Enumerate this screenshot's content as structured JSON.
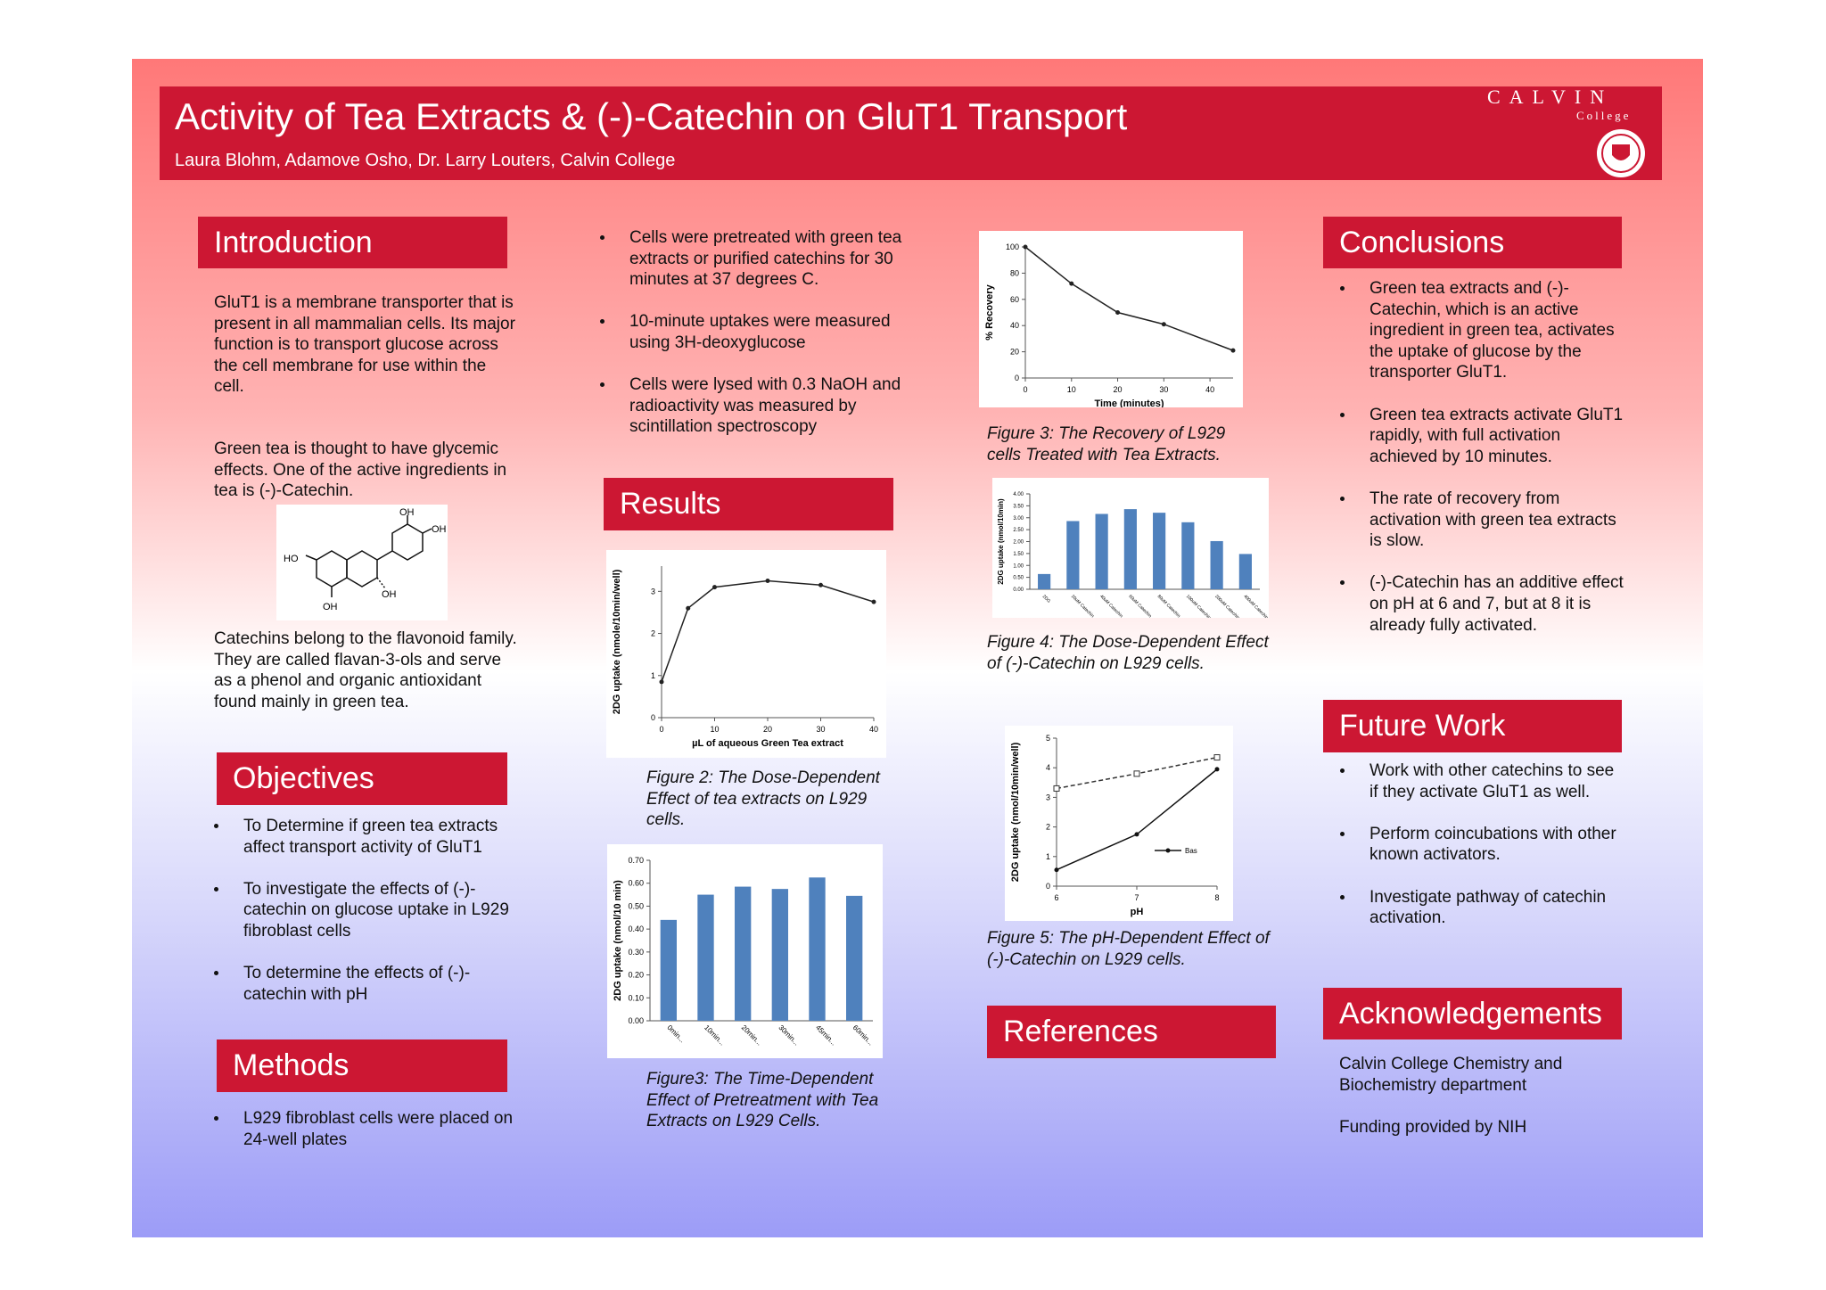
{
  "header": {
    "title": "Activity of Tea Extracts & (-)-Catechin on GluT1 Transport",
    "authors": "Laura Blohm, Adamove Osho, Dr. Larry Louters, Calvin College",
    "logo": {
      "name": "CALVIN",
      "subtitle": "College"
    }
  },
  "introduction": {
    "heading": "Introduction",
    "paragraphs": [
      "GluT1 is a membrane transporter that is present in all mammalian cells. Its major function is to transport glucose across the cell membrane for use within  the cell.",
      "Green tea is thought to have glycemic effects. One of the active ingredients in tea is  (-)-Catechin.",
      "Catechins belong to the flavonoid family. They are called flavan-3-ols and  serve as a phenol and organic antioxidant found mainly in green tea."
    ],
    "structure_labels": [
      "OH",
      "OH",
      "HO",
      "OH",
      "OH"
    ]
  },
  "objectives": {
    "heading": "Objectives",
    "items": [
      "To Determine if green tea extracts affect transport activity of GluT1",
      "To investigate the effects of (-)-catechin on glucose uptake in L929 fibroblast cells",
      "To determine the effects of (-)-catechin with pH"
    ]
  },
  "methods": {
    "heading": "Methods",
    "items": [
      "L929 fibroblast cells were placed on 24-well plates",
      "Cells were pretreated with green tea extracts or purified catechins for 30 minutes at 37 degrees C.",
      "10-minute uptakes were measured using 3H-deoxyglucose",
      "Cells were lysed with 0.3 NaOH and radioactivity was measured by scintillation spectroscopy"
    ]
  },
  "results": {
    "heading": "Results"
  },
  "chart_data": [
    {
      "type": "line",
      "caption": "Figure 2: The Dose-Dependent Effect of tea extracts on L929 cells.",
      "x_label": "µL of aqueous Green Tea extract",
      "y_label": "2DG uptake (nmole/10min/well)",
      "x": [
        0,
        5,
        10,
        20,
        30,
        40
      ],
      "series": [
        {
          "color": "#222222",
          "style": "solid",
          "values": [
            0.85,
            2.6,
            3.1,
            3.25,
            3.15,
            2.75
          ]
        }
      ],
      "xlim": [
        0,
        40
      ],
      "xticks": [
        0,
        10,
        20,
        30,
        40
      ],
      "ylim": [
        0,
        3.6
      ],
      "yticks": [
        0,
        1,
        2,
        3
      ]
    },
    {
      "type": "bar",
      "caption": "Figure3: The Time-Dependent Effect of Pretreatment with Tea Extracts on L929 Cells.",
      "y_label": "2DG uptake (nmol/10 min)",
      "categories": [
        "0min...",
        "10min...",
        "20min...",
        "30min...",
        "45min...",
        "60min..."
      ],
      "values": [
        0.44,
        0.55,
        0.585,
        0.575,
        0.625,
        0.545
      ],
      "color": "#4f81bd",
      "ylim": [
        0,
        0.7
      ],
      "yticks": [
        {
          "value": 0,
          "label": "0.00"
        },
        {
          "value": 0.1,
          "label": "0.10"
        },
        {
          "value": 0.2,
          "label": "0.20"
        },
        {
          "value": 0.3,
          "label": "0.30"
        },
        {
          "value": 0.4,
          "label": "0.40"
        },
        {
          "value": 0.5,
          "label": "0.50"
        },
        {
          "value": 0.6,
          "label": "0.60"
        },
        {
          "value": 0.7,
          "label": "0.70"
        }
      ]
    },
    {
      "type": "line",
      "caption": "Figure 3: The Recovery of L929 cells Treated with Tea Extracts.",
      "x_label": "Time (minutes)",
      "y_label": "% Recovery",
      "x": [
        0,
        10,
        20,
        30,
        45
      ],
      "series": [
        {
          "color": "#222222",
          "style": "solid",
          "values": [
            100,
            72,
            50,
            41,
            21
          ]
        }
      ],
      "xlim": [
        0,
        45
      ],
      "xticks": [
        0,
        10,
        20,
        30,
        40
      ],
      "ylim": [
        0,
        100
      ],
      "yticks": [
        0,
        20,
        40,
        60,
        80,
        100
      ]
    },
    {
      "type": "bar",
      "caption": "Figure 4: The Dose-Dependent Effect of (-)-Catechin on L929 cells.",
      "y_label": "2DG uptake (nmol/10min)",
      "categories": [
        "2DG",
        "20uM Catechin",
        "40uM Catechin",
        "60uM Catechin",
        "80uM Catechin",
        "100uM Catechin",
        "200uM Catechin",
        "400uM Catechin"
      ],
      "values": [
        0.64,
        2.86,
        3.16,
        3.36,
        3.21,
        2.81,
        2.02,
        1.48
      ],
      "color": "#4f81bd",
      "ylim": [
        0,
        4
      ],
      "yticks": [
        {
          "value": 0,
          "label": "0.00"
        },
        {
          "value": 0.5,
          "label": "0.50"
        },
        {
          "value": 1,
          "label": "1.00"
        },
        {
          "value": 1.5,
          "label": "1.50"
        },
        {
          "value": 2,
          "label": "2.00"
        },
        {
          "value": 2.5,
          "label": "2.50"
        },
        {
          "value": 3,
          "label": "3.00"
        },
        {
          "value": 3.5,
          "label": "3.50"
        },
        {
          "value": 4,
          "label": "4.00"
        }
      ]
    },
    {
      "type": "line",
      "caption": "Figure 5: The pH-Dependent Effect of (-)-Catechin on L929 cells.",
      "x_label": "pH",
      "y_label": "2DG uptake (nmol/10min/well)",
      "x": [
        6,
        7,
        8
      ],
      "series": [
        {
          "color": "#333333",
          "style": "dashed",
          "values": [
            3.3,
            3.8,
            4.35
          ]
        },
        {
          "name": "Bas",
          "color": "#111111",
          "style": "solid",
          "values": [
            0.55,
            1.75,
            3.95
          ]
        }
      ],
      "xlim": [
        6,
        8
      ],
      "xticks": [
        6,
        7,
        8
      ],
      "ylim": [
        0,
        5
      ],
      "yticks": [
        0,
        1,
        2,
        3,
        4,
        5
      ]
    }
  ],
  "references": {
    "heading": "References"
  },
  "conclusions": {
    "heading": "Conclusions",
    "items": [
      "Green tea extracts and (-)-Catechin, which is an active ingredient in green tea, activates the uptake of glucose by the transporter GluT1.",
      "Green tea extracts activate GluT1 rapidly, with full activation achieved by 10 minutes.",
      "The rate of recovery from activation with green tea extracts is slow.",
      "(-)-Catechin has an additive effect on pH at 6 and 7, but at 8 it is already fully activated."
    ]
  },
  "future_work": {
    "heading": "Future Work",
    "items": [
      "Work with other catechins to see if they activate GluT1 as well.",
      "Perform coincubations with other known activators.",
      "Investigate pathway of catechin activation."
    ]
  },
  "acknowledgements": {
    "heading": "Acknowledgements",
    "paragraphs": [
      "Calvin College Chemistry and Biochemistry department",
      "Funding provided by NIH"
    ]
  }
}
